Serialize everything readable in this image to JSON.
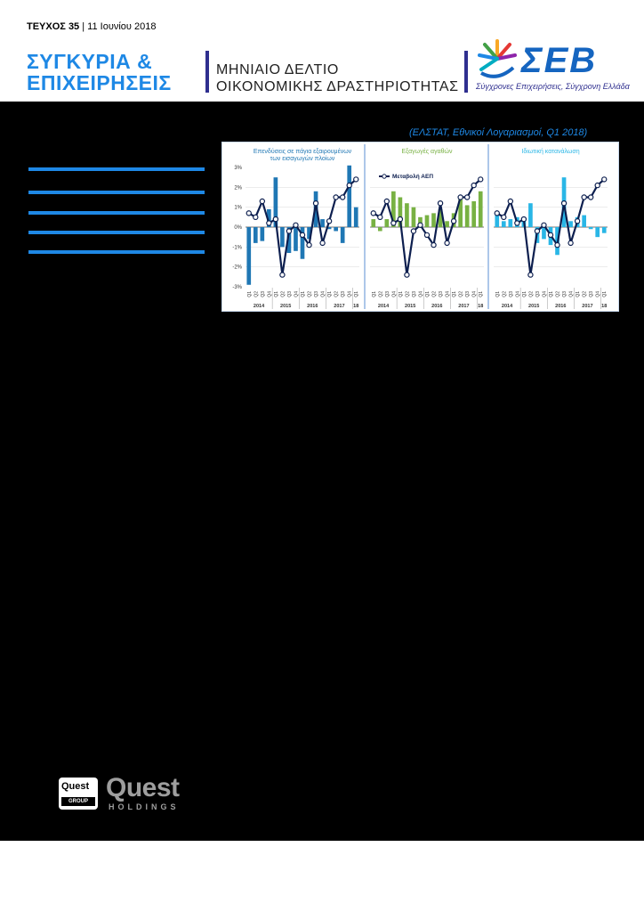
{
  "header": {
    "issue_label": "ΤΕΥΧΟΣ 35",
    "issue_sep": " | ",
    "issue_date": "11 Ιουνίου 2018",
    "brand_line1": "ΣΥΓΚΥΡΙΑ &",
    "brand_line2": "ΕΠΙΧΕΙΡΗΣΕΙΣ",
    "subtitle_line1": "ΜΗΝΙΑΙΟ ΔΕΛΤΙΟ",
    "subtitle_line2": "ΟΙΚΟΝΟΜΙΚΗΣ ΔΡΑΣΤΗΡΙΟΤΗΤΑΣ",
    "logo_text": "ΣΕΒ",
    "logo_tagline": "Σύγχρονες Επιχειρήσεις, Σύγχρονη Ελλάδα"
  },
  "figure": {
    "source": "(ΕΛΣΤΑΤ, Εθνικοί Λογαριασμοί, Q1 2018)",
    "colors": {
      "panel1": "#1f77b4",
      "panel2": "#78b143",
      "panel3": "#29b6e6",
      "gdp_line": "#0d1f4f"
    }
  },
  "footer": {
    "quest_box_text": "Quest",
    "quest_box_sub": "GROUP",
    "quest_name": "Quest",
    "quest_holdings": "HOLDINGS"
  },
  "chart_data": [
    {
      "type": "bar",
      "title": "Επενδύσεις σε πάγια εξαιρουμένων των εισαγωγών πλοίων",
      "ylim": [
        -3,
        3
      ],
      "yticks": [
        "3%",
        "2%",
        "1%",
        "0%",
        "-1%",
        "-2%",
        "-3%"
      ],
      "categories": [
        "Q1",
        "Q2",
        "Q3",
        "Q4",
        "Q1",
        "Q2",
        "Q3",
        "Q4",
        "Q1",
        "Q2",
        "Q3",
        "Q4",
        "Q1",
        "Q2",
        "Q3",
        "Q4",
        "Q1"
      ],
      "year_labels": [
        "2014",
        "2015",
        "2016",
        "2017",
        "18"
      ],
      "values": [
        -2.9,
        -0.8,
        -0.7,
        0.9,
        2.5,
        -1.0,
        -1.3,
        -1.2,
        -1.6,
        -0.6,
        1.8,
        0.4,
        -0.1,
        -0.2,
        -0.8,
        3.1,
        1.0
      ],
      "line": {
        "name": "Μεταβολή ΑΕΠ",
        "values": [
          0.7,
          0.5,
          1.3,
          0.2,
          0.4,
          -2.4,
          -0.2,
          0.1,
          -0.4,
          -0.9,
          1.2,
          -0.8,
          0.3,
          1.5,
          1.5,
          2.1,
          2.4
        ]
      }
    },
    {
      "type": "bar",
      "title": "Εξαγωγές αγαθών",
      "legend": "Μεταβολή ΑΕΠ",
      "ylim": [
        -3,
        3
      ],
      "categories": [
        "Q1",
        "Q2",
        "Q3",
        "Q4",
        "Q1",
        "Q2",
        "Q3",
        "Q4",
        "Q1",
        "Q2",
        "Q3",
        "Q4",
        "Q1",
        "Q2",
        "Q3",
        "Q4",
        "Q1"
      ],
      "year_labels": [
        "2014",
        "2015",
        "2016",
        "2017",
        "18"
      ],
      "values": [
        0.4,
        -0.2,
        0.4,
        1.8,
        1.5,
        1.2,
        1.0,
        0.5,
        0.6,
        0.7,
        0.9,
        0.3,
        0.7,
        1.4,
        1.1,
        1.3,
        1.8
      ],
      "line": {
        "name": "Μεταβολή ΑΕΠ",
        "values": [
          0.7,
          0.5,
          1.3,
          0.2,
          0.4,
          -2.4,
          -0.2,
          0.1,
          -0.4,
          -0.9,
          1.2,
          -0.8,
          0.3,
          1.5,
          1.5,
          2.1,
          2.4
        ]
      }
    },
    {
      "type": "bar",
      "title": "Ιδιωτική κατανάλωση",
      "ylim": [
        -3,
        3
      ],
      "categories": [
        "Q1",
        "Q2",
        "Q3",
        "Q4",
        "Q1",
        "Q2",
        "Q3",
        "Q4",
        "Q1",
        "Q2",
        "Q3",
        "Q4",
        "Q1",
        "Q2",
        "Q3",
        "Q4",
        "Q1"
      ],
      "year_labels": [
        "2014",
        "2015",
        "2016",
        "2017",
        "18"
      ],
      "values": [
        0.6,
        0.3,
        0.4,
        0.5,
        0.3,
        1.2,
        -0.8,
        -0.6,
        -0.9,
        -1.4,
        2.5,
        0.3,
        0.5,
        0.6,
        -0.1,
        -0.5,
        -0.3
      ],
      "line": {
        "name": "Μεταβολή ΑΕΠ",
        "values": [
          0.7,
          0.5,
          1.3,
          0.2,
          0.4,
          -2.4,
          -0.2,
          0.1,
          -0.4,
          -0.9,
          1.2,
          -0.8,
          0.3,
          1.5,
          1.5,
          2.1,
          2.4
        ]
      }
    }
  ]
}
